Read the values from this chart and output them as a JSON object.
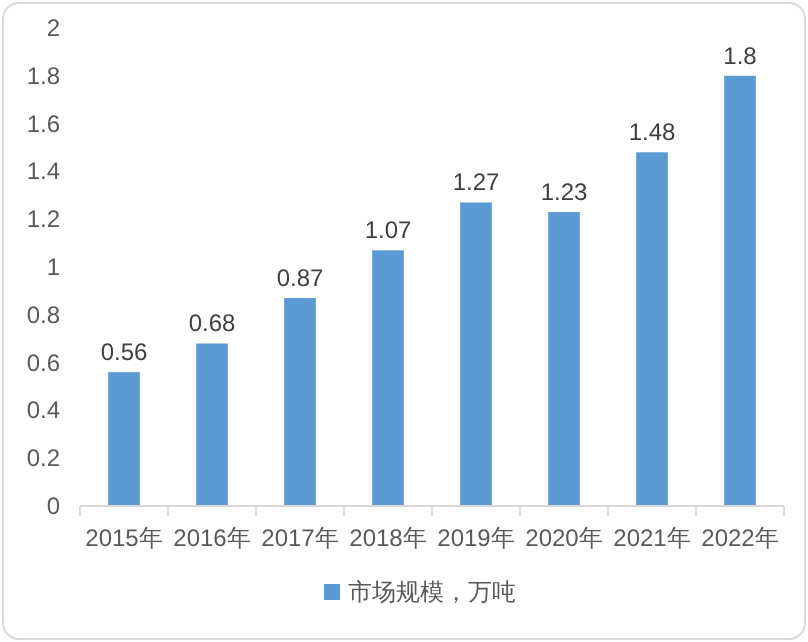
{
  "chart_data": {
    "type": "bar",
    "categories": [
      "2015年",
      "2016年",
      "2017年",
      "2018年",
      "2019年",
      "2020年",
      "2021年",
      "2022年"
    ],
    "series": [
      {
        "name": "市场规模，万吨",
        "color": "#5b9bd5",
        "values": [
          0.56,
          0.68,
          0.87,
          1.07,
          1.27,
          1.23,
          1.48,
          1.8
        ]
      }
    ],
    "ylim": [
      0,
      2
    ],
    "yticks": [
      0,
      0.2,
      0.4,
      0.6,
      0.8,
      1,
      1.2,
      1.4,
      1.6,
      1.8,
      2
    ],
    "data_labels": true,
    "legend": "bottom",
    "grid": false
  }
}
